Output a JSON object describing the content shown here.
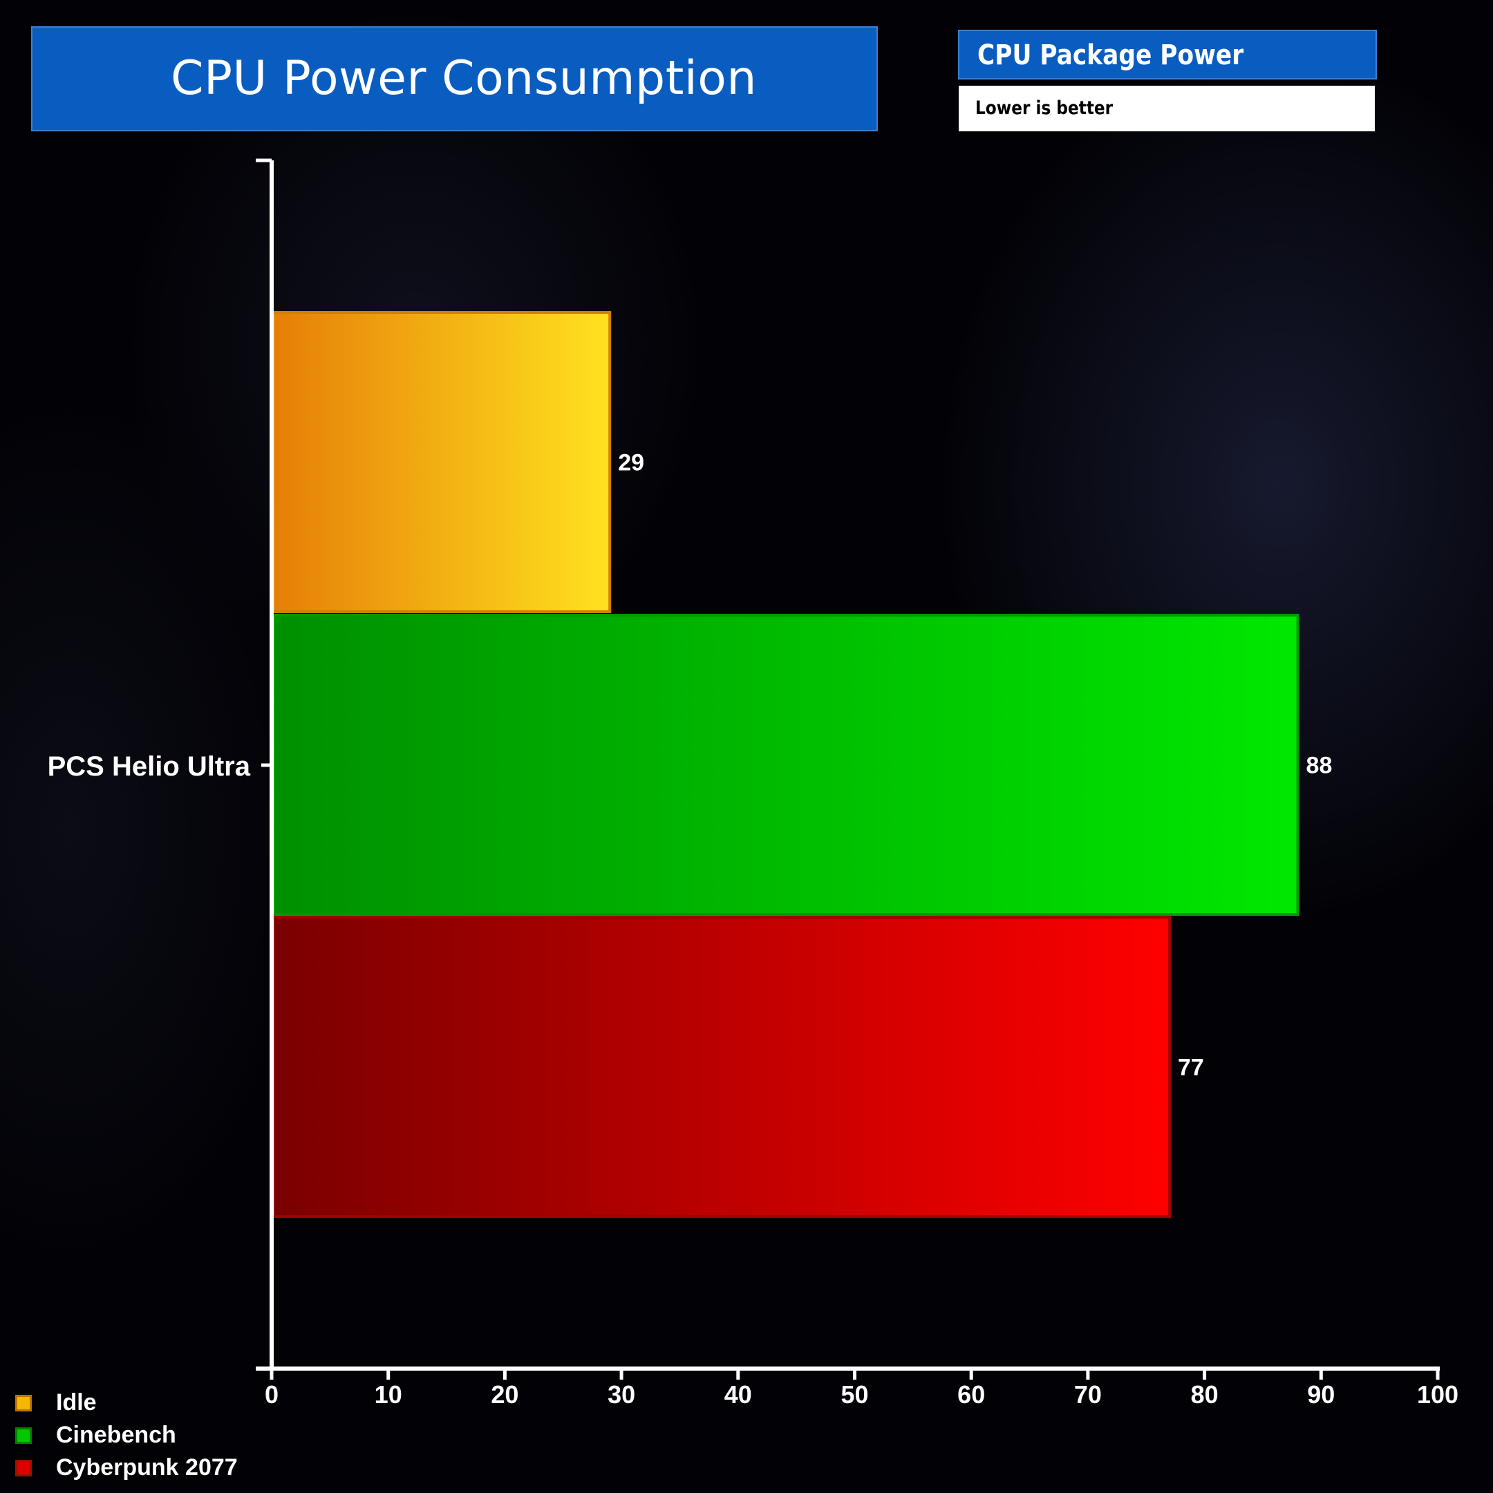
{
  "title": "CPU Power Consumption",
  "subtitle": "CPU Package Power",
  "note": "Lower is better",
  "chart_data": {
    "type": "bar",
    "orientation": "horizontal",
    "categories": [
      "PCS Helio Ultra"
    ],
    "series": [
      {
        "name": "Idle",
        "values": [
          29
        ],
        "color": "#f5b800"
      },
      {
        "name": "Cinebench",
        "values": [
          88
        ],
        "color": "#00c800"
      },
      {
        "name": "Cyberpunk 2077",
        "values": [
          77
        ],
        "color": "#e00000"
      }
    ],
    "xlim": [
      0,
      100
    ],
    "xticks": [
      0,
      10,
      20,
      30,
      40,
      50,
      60,
      70,
      80,
      90,
      100
    ],
    "data_labels": [
      "29",
      "88",
      "77"
    ],
    "grid": false,
    "legend_position": "bottom-left"
  }
}
